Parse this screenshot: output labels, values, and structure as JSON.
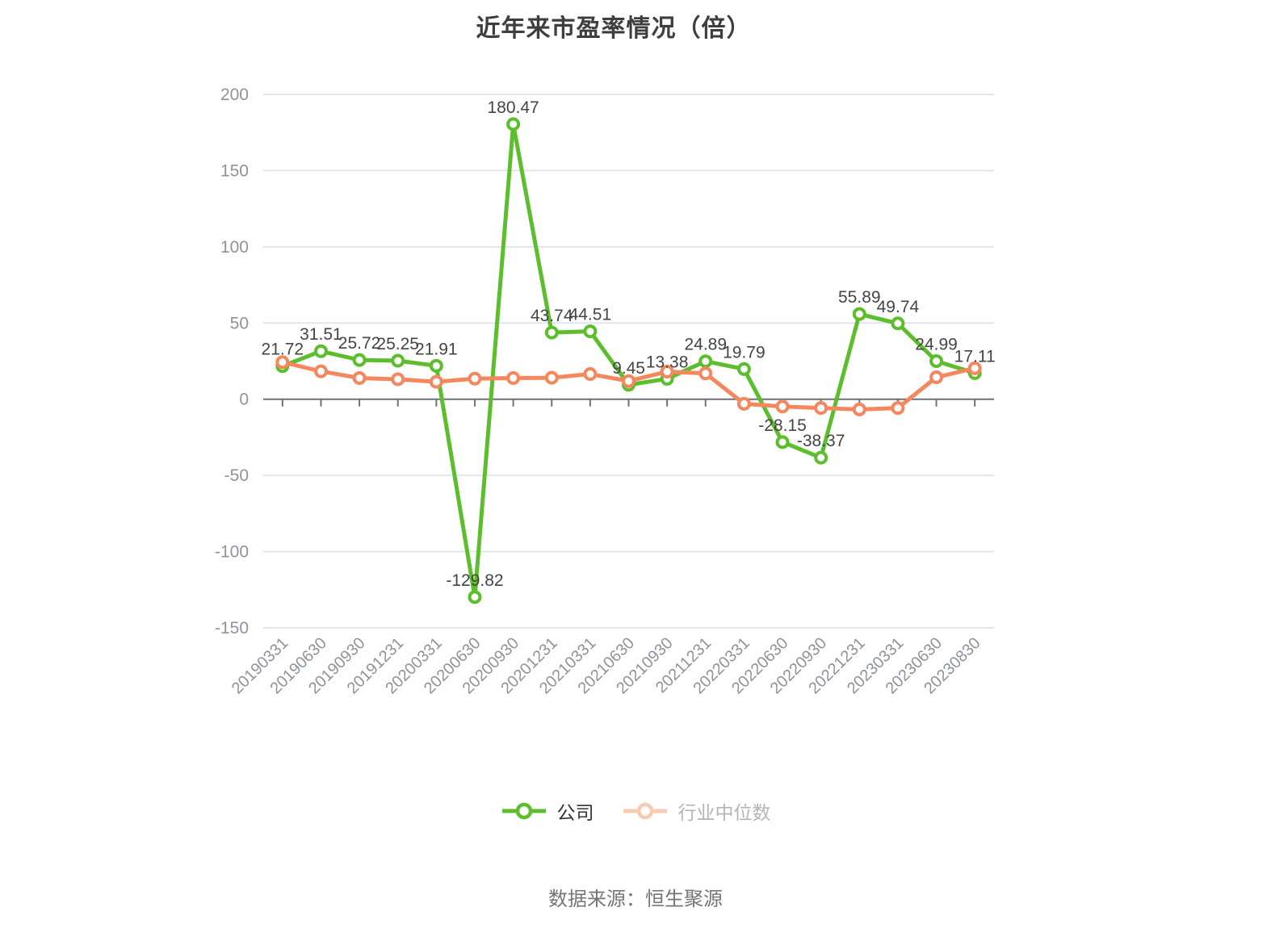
{
  "chart_data": {
    "type": "line",
    "title": "近年来市盈率情况（倍）",
    "categories": [
      "20190331",
      "20190630",
      "20190930",
      "20191231",
      "20200331",
      "20200630",
      "20200930",
      "20201231",
      "20210331",
      "20210630",
      "20210930",
      "20211231",
      "20220331",
      "20220630",
      "20220930",
      "20221231",
      "20230331",
      "20230630",
      "20230830"
    ],
    "series": [
      {
        "name": "公司",
        "color": "#5cbe2d",
        "legend_icon_color": "#5cbe2d",
        "legend_text_color": "#333333",
        "show_point_labels": true,
        "values": [
          21.72,
          31.51,
          25.72,
          25.25,
          21.91,
          -129.82,
          180.47,
          43.74,
          44.51,
          9.45,
          13.38,
          24.89,
          19.79,
          -28.15,
          -38.37,
          55.89,
          49.74,
          24.99,
          17.11
        ]
      },
      {
        "name": "行业中位数",
        "color": "#f5875f",
        "legend_icon_color": "#f9c9b0",
        "legend_text_color": "#b5b5b5",
        "show_point_labels": false,
        "values": [
          24.3,
          18.3,
          13.9,
          13.1,
          11.4,
          13.5,
          13.9,
          14.1,
          16.5,
          11.9,
          18.1,
          16.9,
          -3.0,
          -4.8,
          -5.8,
          -6.7,
          -5.8,
          14.4,
          20.3
        ]
      }
    ],
    "ylim": [
      -150,
      200
    ],
    "yticks": [
      200,
      150,
      100,
      50,
      0,
      -50,
      -100,
      -150
    ],
    "grid": true,
    "legend_position": "bottom"
  },
  "source_note": "数据来源：恒生聚源",
  "colors": {
    "background": "#ffffff",
    "grid": "#e0e5f0",
    "axis": "#6e7079",
    "axis_text": "#8e939b",
    "data_label": "#454545",
    "title": "#3e3e3e",
    "footer": "#757575"
  }
}
